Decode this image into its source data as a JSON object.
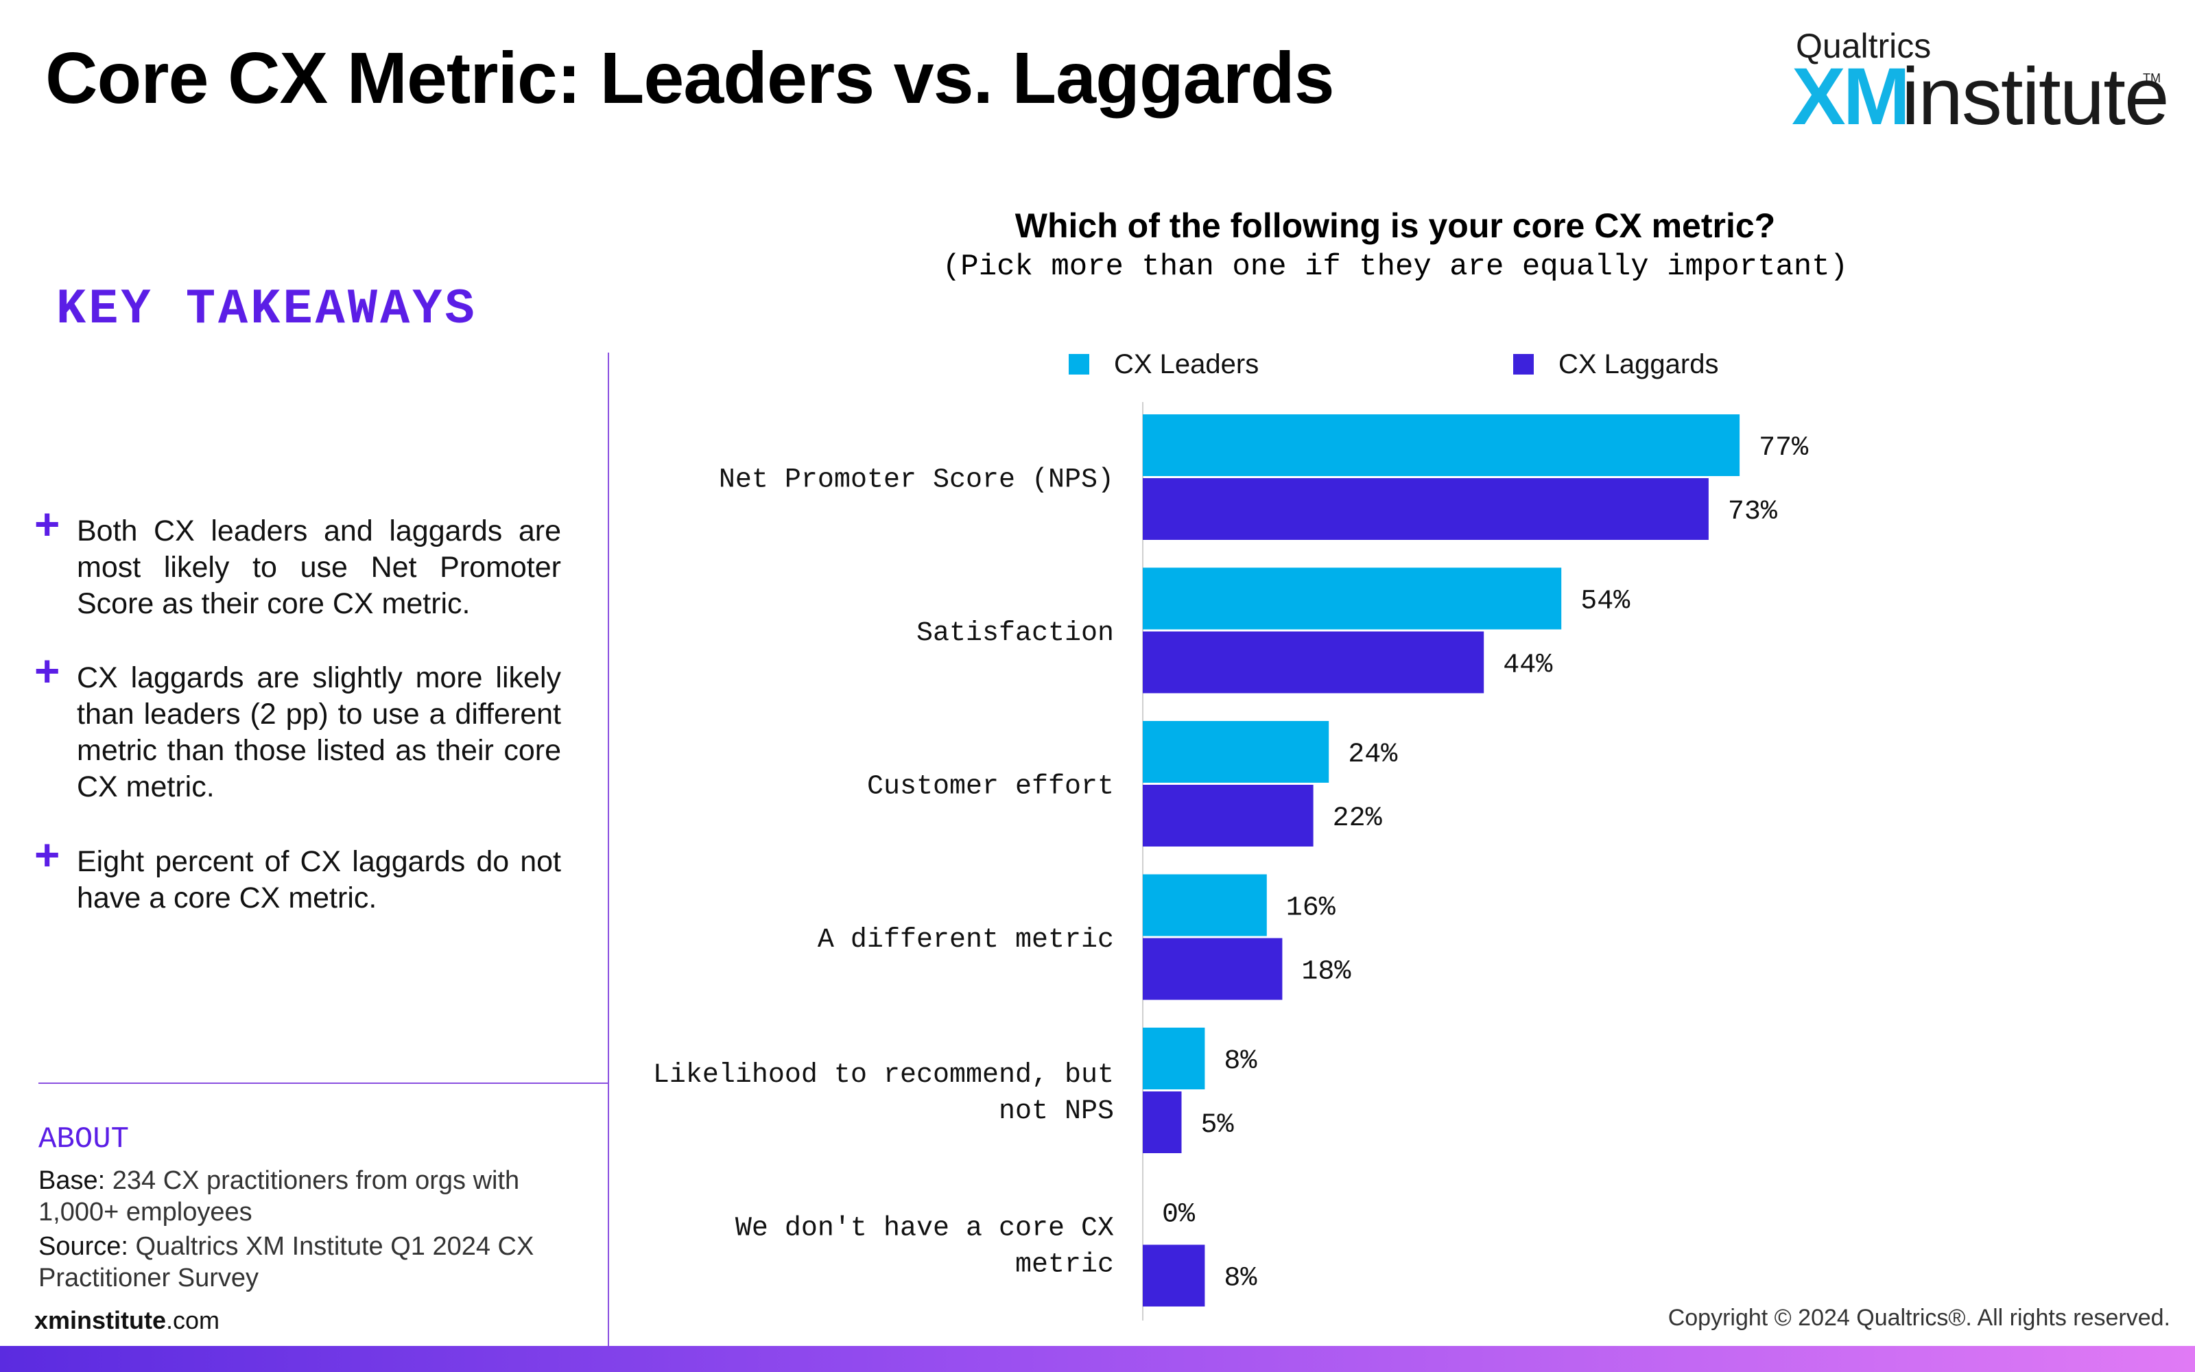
{
  "title": "Core CX Metric: Leaders vs. Laggards",
  "logo": {
    "top": "Qualtrics",
    "xm": "XM",
    "institute": "institute",
    "tm": "TM"
  },
  "key_takeaways": {
    "heading": "KEY TAKEAWAYS",
    "bullets": [
      "Both CX leaders and laggards are most likely to use Net Promoter Score as their core CX metric.",
      "CX laggards are slightly more likely than leaders (2 pp) to use a different metric than those listed as their core CX metric.",
      "Eight percent of CX laggards do not have a core CX metric."
    ]
  },
  "about": {
    "heading": "ABOUT",
    "base_label": "Base:",
    "base_text": "234 CX practitioners from orgs with 1,000+ employees",
    "source_label": "Source:",
    "source_text": "Qualtrics XM Institute Q1 2024 CX Practitioner Survey"
  },
  "footer": {
    "site_bold": "xminstitute",
    "site_rest": ".com",
    "copyright": "Copyright © 2024 Qualtrics®. All rights reserved."
  },
  "colors": {
    "leaders": "#00b0eb",
    "laggards": "#3d22dc",
    "accent": "#5b1ee6"
  },
  "chart_data": {
    "type": "bar",
    "orientation": "horizontal",
    "title": "Which of the following is your core CX metric?",
    "subtitle": "(Pick more than one if they are equally important)",
    "categories": [
      "Net Promoter Score (NPS)",
      "Satisfaction",
      "Customer effort",
      "A different metric",
      "Likelihood to recommend, but not NPS",
      "We don't have a core CX metric"
    ],
    "category_lines": [
      [
        "Net Promoter Score (NPS)"
      ],
      [
        "Satisfaction"
      ],
      [
        "Customer effort"
      ],
      [
        "A different metric"
      ],
      [
        "Likelihood to recommend, but",
        "not NPS"
      ],
      [
        "We don't have a core CX",
        "metric"
      ]
    ],
    "series": [
      {
        "name": "CX Leaders",
        "values": [
          77,
          54,
          24,
          16,
          8,
          0
        ]
      },
      {
        "name": "CX Laggards",
        "values": [
          73,
          44,
          22,
          18,
          5,
          8
        ]
      }
    ],
    "value_suffix": "%",
    "xlim": [
      0,
      100
    ],
    "legend_position": "top",
    "grid": false
  }
}
